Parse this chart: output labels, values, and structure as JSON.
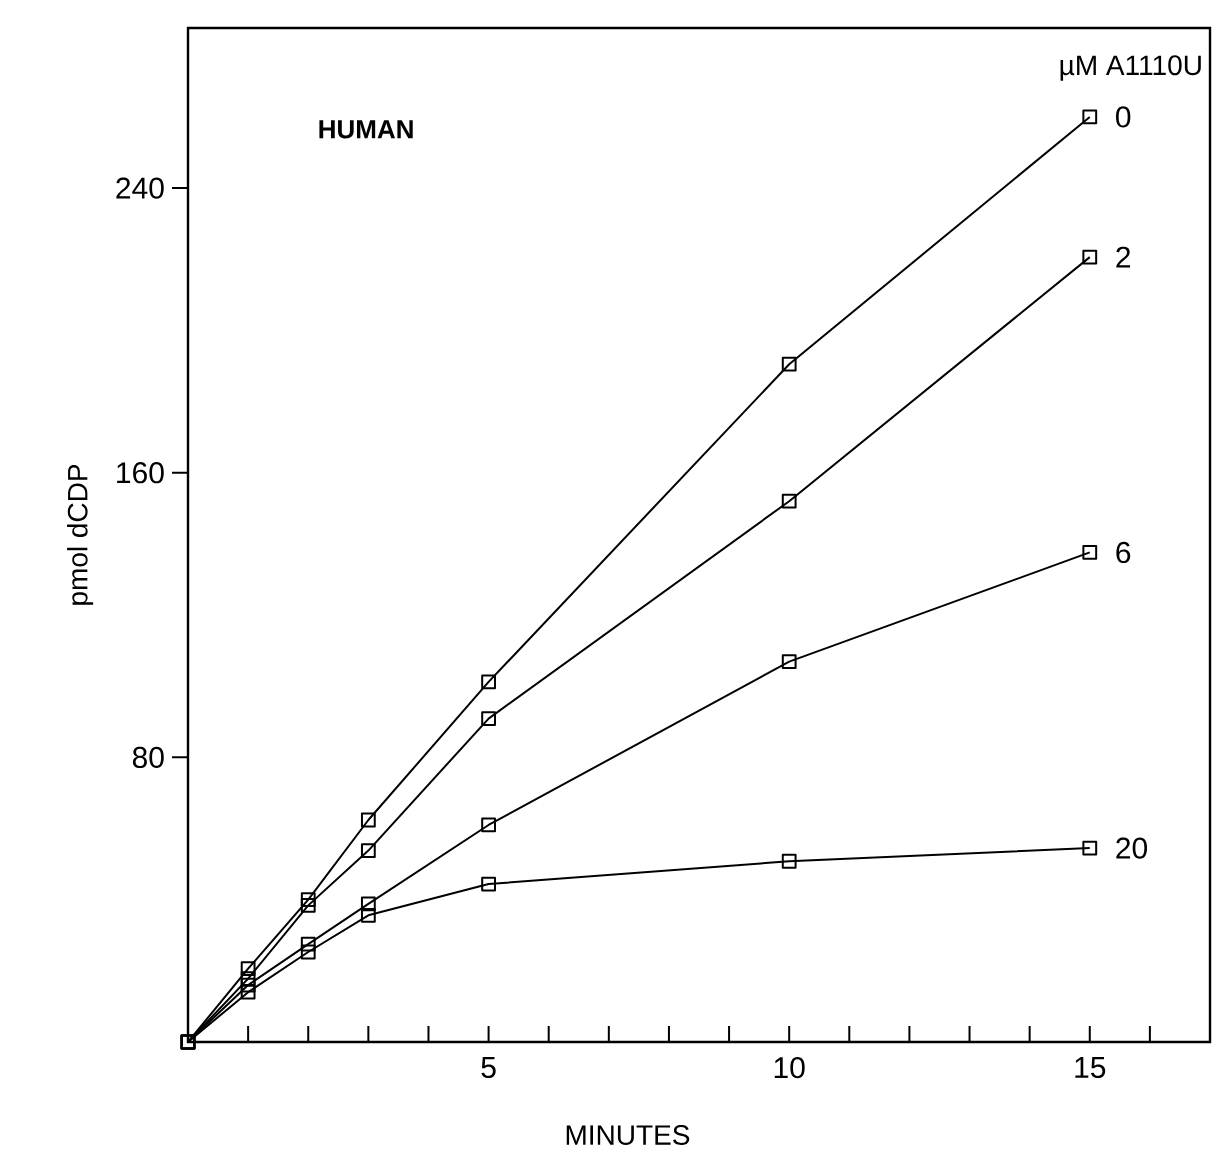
{
  "chart_data": {
    "type": "line",
    "xlabel": "MINUTES",
    "ylabel": "pmol dCDP",
    "legend_title": "µM A1110U",
    "annotations": [
      "HUMAN"
    ],
    "x": [
      0,
      1,
      2,
      3,
      5,
      10,
      15
    ],
    "series": [
      {
        "name": "0",
        "color": "#000000",
        "values": [
          0,
          20.6,
          40,
          62.4,
          101.2,
          190.5,
          260
        ]
      },
      {
        "name": "2",
        "color": "#000000",
        "values": [
          0,
          17.8,
          38.4,
          53.8,
          90.9,
          152,
          220.6
        ]
      },
      {
        "name": "6",
        "color": "#000000",
        "values": [
          0,
          16,
          27.5,
          38.8,
          61,
          106.9,
          137.6
        ]
      },
      {
        "name": "20",
        "color": "#000000",
        "values": [
          0,
          14,
          25.3,
          35.6,
          44.4,
          50.8,
          54.5
        ]
      }
    ],
    "xlim": [
      0,
      17
    ],
    "ylim": [
      0,
      285
    ],
    "xticks": [
      {
        "value": 1,
        "label": null
      },
      {
        "value": 2,
        "label": null
      },
      {
        "value": 3,
        "label": null
      },
      {
        "value": 4,
        "label": null
      },
      5,
      {
        "value": 6,
        "label": null
      },
      {
        "value": 7,
        "label": null
      },
      {
        "value": 8,
        "label": null
      },
      {
        "value": 9,
        "label": null
      },
      10,
      {
        "value": 11,
        "label": null
      },
      {
        "value": 12,
        "label": null
      },
      {
        "value": 13,
        "label": null
      },
      {
        "value": 14,
        "label": null
      },
      15,
      {
        "value": 16,
        "label": null
      }
    ],
    "yticks": [
      80,
      160,
      240
    ],
    "marker": "square",
    "line_style": "solid",
    "legend": false,
    "grid": false
  }
}
